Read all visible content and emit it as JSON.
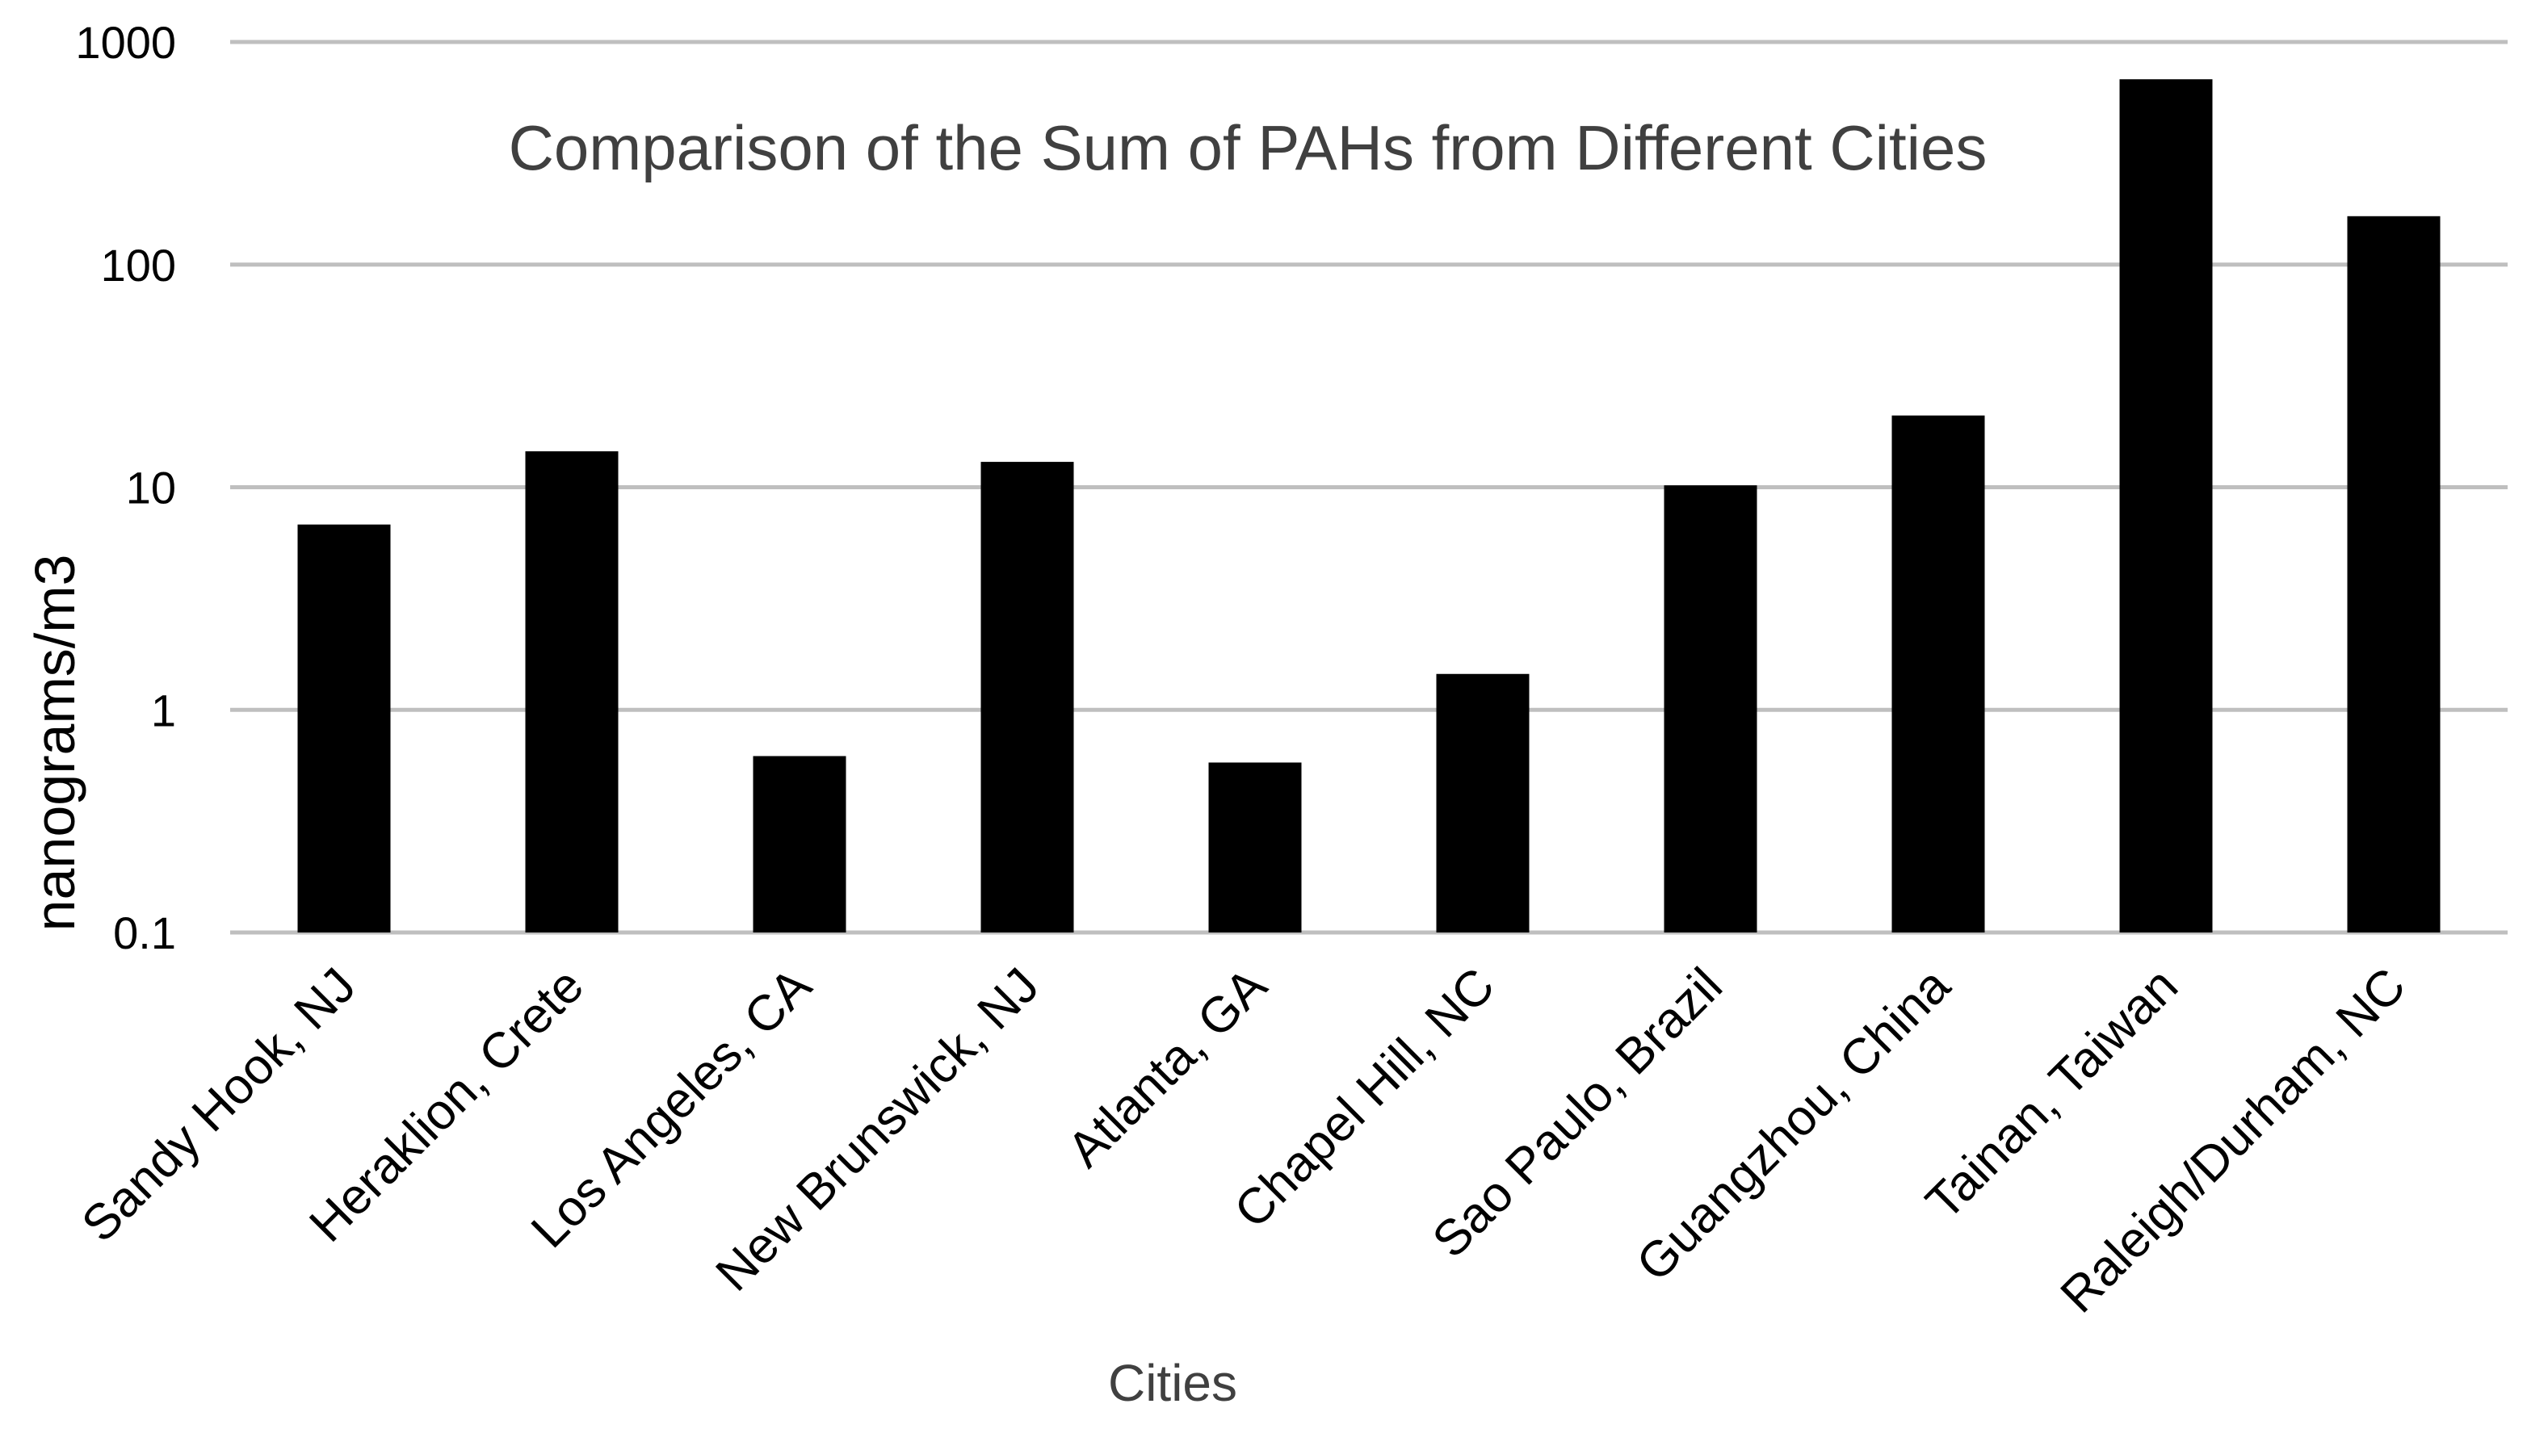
{
  "chart_data": {
    "type": "bar",
    "title": "Comparison of the Sum of PAHs from Different Cities",
    "xlabel": "Cities",
    "ylabel": "nanograms/m3",
    "y_scale": "log",
    "ylim": [
      0.1,
      1000
    ],
    "y_ticks": [
      "0.1",
      "1",
      "10",
      "100",
      "1000"
    ],
    "grid": true,
    "legend": "none",
    "bar_color": "#000000",
    "grid_color": "#bfbfbf",
    "categories": [
      "Sandy Hook, NJ",
      "Heraklion, Crete",
      "Los Angeles, CA",
      "New Brunswick, NJ",
      "Atlanta, GA",
      "Chapel Hill, NC",
      "Sao Paulo, Brazil",
      "Guangzhou,  China",
      "Tainan, Taiwan",
      "Raleigh/Durham, NC"
    ],
    "values": [
      6.8,
      14.5,
      0.62,
      13.0,
      0.58,
      1.45,
      10.2,
      21.0,
      680,
      165
    ]
  }
}
